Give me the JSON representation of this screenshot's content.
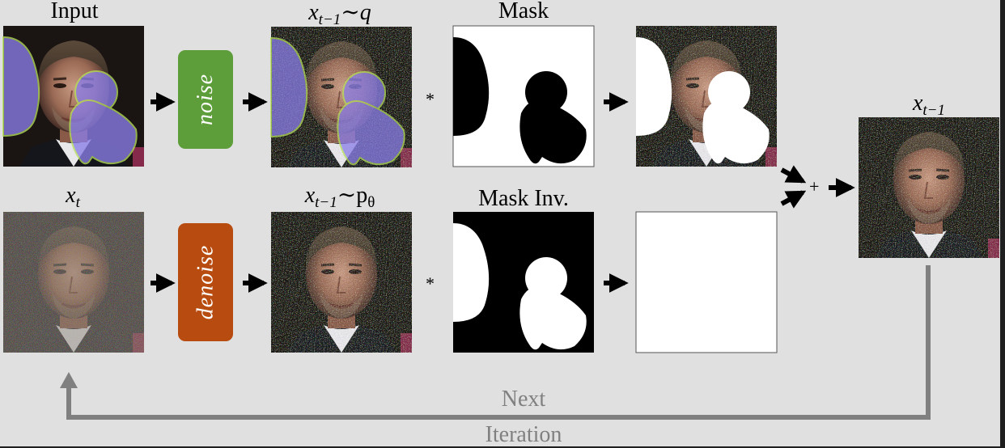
{
  "labels": {
    "input": "Input",
    "xt_base": "x",
    "xt_sub": "t",
    "xq_base": "x",
    "xq_sub": "t−1",
    "xq_tail": "∼q",
    "xp_base": "x",
    "xp_sub": "t−1",
    "xp_tail": "∼p",
    "xp_tail_sub": "θ",
    "mask": "Mask",
    "mask_inv": "Mask Inv.",
    "out_base": "x",
    "out_sub": "t−1"
  },
  "boxes": {
    "noise": "noise",
    "denoise": "denoise"
  },
  "operators": {
    "multiply_top": "*",
    "multiply_bottom": "*",
    "plus": "+"
  },
  "loop": {
    "line1": "Next",
    "line2": "Iteration"
  },
  "colors": {
    "noise_box": "#5d9e3a",
    "denoise_box": "#b84c10",
    "overlay": "#8a7ee8",
    "loop_arrow": "#808080"
  }
}
